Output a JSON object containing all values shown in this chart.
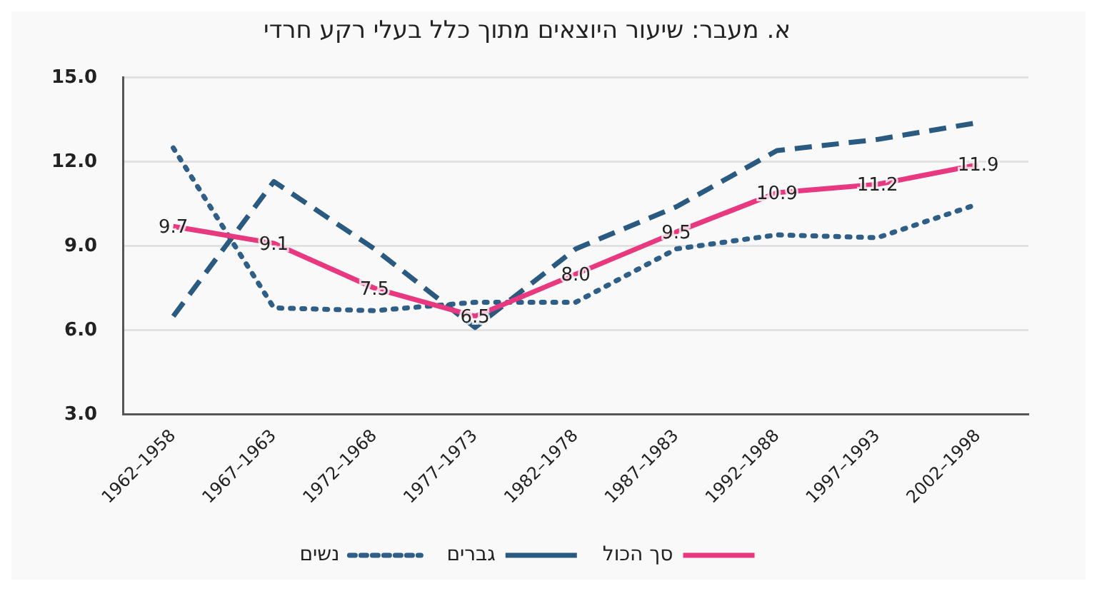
{
  "chart_data": {
    "type": "line",
    "title": "א. מעבר: שיעור היוצאים מתוך כלל בעלי רקע חרדי",
    "categories": [
      "1962–1958",
      "1967–1963",
      "1972–1968",
      "1977–1973",
      "1982–1978",
      "1987–1983",
      "1992–1988",
      "1997–1993",
      "2002–1998"
    ],
    "series": [
      {
        "name": "סך הכול",
        "color": "#e8387f",
        "line_style": "solid",
        "values": [
          9.7,
          9.1,
          7.5,
          6.5,
          8.0,
          9.5,
          10.9,
          11.2,
          11.9
        ],
        "value_labels": [
          "9.7",
          "9.1",
          "7.5",
          "6.5",
          "8.0",
          "9.5",
          "10.9",
          "11.2",
          "11.9"
        ]
      },
      {
        "name": "גברים",
        "color": "#2b5a80",
        "line_style": "dashed",
        "values": [
          6.5,
          11.3,
          8.9,
          6.1,
          8.9,
          10.4,
          12.4,
          12.8,
          13.4
        ]
      },
      {
        "name": "נשים",
        "color": "#2f5f86",
        "line_style": "dotted",
        "values": [
          12.5,
          6.8,
          6.7,
          7.0,
          7.0,
          8.9,
          9.4,
          9.3,
          10.5
        ]
      }
    ],
    "ylim": [
      3,
      15
    ],
    "yticks": [
      {
        "value": 3,
        "label": "3.0"
      },
      {
        "value": 6,
        "label": "6.0"
      },
      {
        "value": 9,
        "label": "9.0"
      },
      {
        "value": 12,
        "label": "12.0"
      },
      {
        "value": 15,
        "label": "15.0"
      }
    ],
    "grid": "y",
    "legend": "bottom",
    "marker": "none"
  }
}
